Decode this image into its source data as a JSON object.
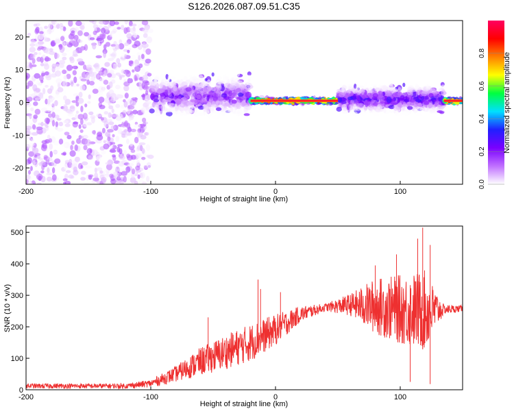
{
  "title": "S126.2026.087.09.51.C35",
  "chart_data": [
    {
      "type": "heatmap",
      "name": "spectrogram",
      "xlabel": "Height of straight line (km)",
      "ylabel": "Frequency (Hz)",
      "xlim": [
        -200,
        150
      ],
      "ylim": [
        -25,
        25
      ],
      "xticks": [
        -200,
        -100,
        0,
        100
      ],
      "yticks": [
        -20,
        -10,
        0,
        10,
        20
      ],
      "colorbar": {
        "label": "Normalized spectral amplitude",
        "range": [
          0,
          1
        ],
        "ticks": [
          0.0,
          0.2,
          0.4,
          0.6,
          0.8
        ],
        "colors": [
          "#ffffff",
          "#c070ff",
          "#7a00ff",
          "#2020ff",
          "#00e0ff",
          "#00ff40",
          "#ffff00",
          "#ff8000",
          "#ff0000",
          "#ff0060"
        ]
      },
      "regions": [
        {
          "x": [
            -200,
            -100
          ],
          "freq_center": 0,
          "freq_spread": 25,
          "amplitude": 0.1,
          "note": "broadband noise"
        },
        {
          "x": [
            -100,
            -20
          ],
          "freq_center": 2,
          "freq_spread": 6,
          "amplitude": 0.2,
          "note": "scattered signal"
        },
        {
          "x": [
            -20,
            50
          ],
          "freq_center": 0.5,
          "freq_spread": 0.6,
          "amplitude": 0.9,
          "note": "strong tone"
        },
        {
          "x": [
            50,
            135
          ],
          "freq_center": 1,
          "freq_spread": 4,
          "amplitude": 0.3,
          "note": "scattered signal"
        },
        {
          "x": [
            135,
            150
          ],
          "freq_center": 0.5,
          "freq_spread": 0.5,
          "amplitude": 0.95,
          "note": "strong tone"
        }
      ]
    },
    {
      "type": "line",
      "name": "snr",
      "xlabel": "Height of straight line (km)",
      "ylabel": "SNR (10 * v/v)",
      "xlim": [
        -200,
        150
      ],
      "ylim": [
        0,
        520
      ],
      "xticks": [
        -200,
        -100,
        0,
        100
      ],
      "yticks": [
        0,
        100,
        200,
        300,
        400,
        500
      ],
      "color": "#ee3030",
      "envelope": {
        "x": [
          -200,
          -120,
          -100,
          -80,
          -60,
          -40,
          -20,
          0,
          20,
          40,
          60,
          80,
          100,
          120,
          135,
          150
        ],
        "mean": [
          12,
          12,
          20,
          50,
          90,
          120,
          150,
          190,
          240,
          262,
          270,
          265,
          255,
          250,
          255,
          258
        ],
        "spread": [
          8,
          8,
          12,
          25,
          45,
          55,
          60,
          50,
          25,
          12,
          35,
          90,
          110,
          130,
          15,
          10
        ]
      },
      "spikes": [
        {
          "x": -14,
          "y": 350
        },
        {
          "x": -12,
          "y": 320
        },
        {
          "x": -54,
          "y": 230
        },
        {
          "x": 4,
          "y": 310
        },
        {
          "x": 80,
          "y": 395
        },
        {
          "x": 97,
          "y": 430
        },
        {
          "x": 114,
          "y": 480
        },
        {
          "x": 118,
          "y": 515
        },
        {
          "x": 124,
          "y": 460
        },
        {
          "x": 108,
          "y": 25
        },
        {
          "x": 124,
          "y": 18
        }
      ]
    }
  ]
}
